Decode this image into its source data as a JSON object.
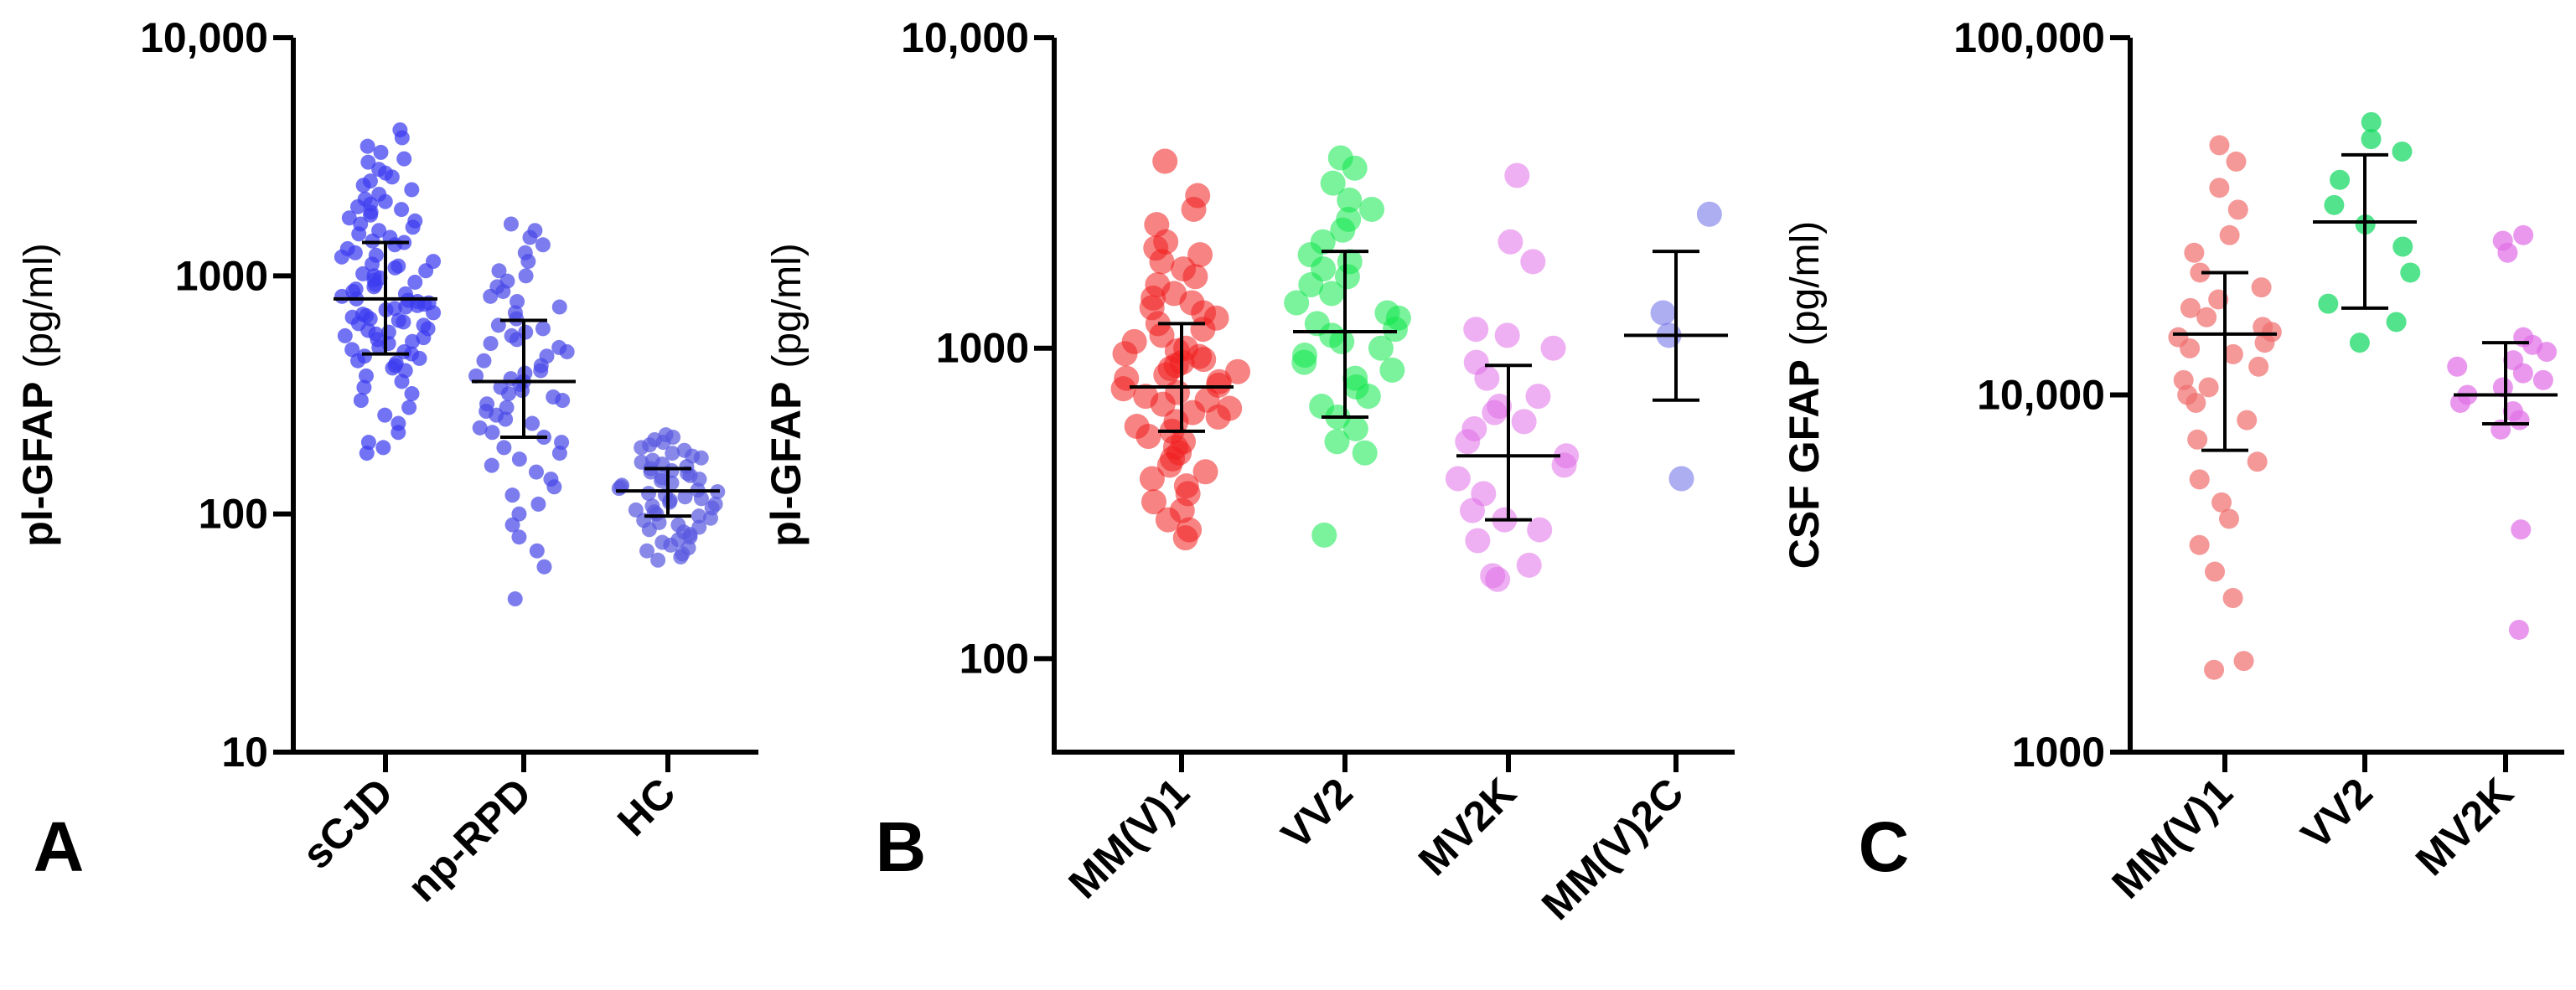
{
  "chart_data": [
    {
      "type": "scatter",
      "panel_label": "A",
      "ylabel_main": "pl-GFAP",
      "ylabel_unit": "(pg/ml)",
      "yscale": "log",
      "ylim": [
        10,
        10000
      ],
      "yticks": [
        10,
        100,
        1000,
        10000
      ],
      "ytick_labels": [
        "10",
        "100",
        "1000",
        "10,000"
      ],
      "categories": [
        "sCJD",
        "np-RPD",
        "HC"
      ],
      "series": [
        {
          "name": "sCJD",
          "color": "#3b3bf0",
          "median": 800,
          "q1": 470,
          "q3": 1380,
          "values": [
            4100,
            3800,
            3500,
            3300,
            3100,
            3000,
            2800,
            2700,
            2600,
            2500,
            2400,
            2300,
            2200,
            2100,
            2050,
            2000,
            1950,
            1900,
            1850,
            1800,
            1750,
            1700,
            1650,
            1600,
            1550,
            1500,
            1450,
            1400,
            1380,
            1350,
            1300,
            1250,
            1220,
            1200,
            1150,
            1120,
            1100,
            1080,
            1050,
            1020,
            1000,
            980,
            960,
            940,
            920,
            900,
            880,
            860,
            840,
            820,
            800,
            790,
            780,
            770,
            760,
            750,
            740,
            730,
            720,
            700,
            690,
            680,
            670,
            660,
            650,
            640,
            630,
            620,
            600,
            590,
            580,
            570,
            560,
            550,
            540,
            530,
            520,
            500,
            490,
            480,
            470,
            460,
            450,
            440,
            430,
            420,
            410,
            400,
            380,
            360,
            340,
            320,
            300,
            280,
            260,
            240,
            220,
            200,
            190,
            180
          ]
        },
        {
          "name": "np-RPD",
          "color": "#4a4ae8",
          "median": 360,
          "q1": 210,
          "q3": 650,
          "values": [
            1650,
            1550,
            1450,
            1350,
            1250,
            1150,
            1050,
            1000,
            950,
            900,
            860,
            820,
            780,
            740,
            700,
            660,
            620,
            600,
            580,
            560,
            540,
            520,
            500,
            480,
            460,
            440,
            420,
            400,
            390,
            380,
            370,
            360,
            350,
            340,
            330,
            320,
            310,
            300,
            290,
            280,
            270,
            260,
            250,
            240,
            230,
            220,
            210,
            200,
            190,
            180,
            170,
            160,
            150,
            140,
            130,
            120,
            110,
            100,
            90,
            80,
            70,
            60,
            44
          ]
        },
        {
          "name": "HC",
          "color": "#5a5ae0",
          "median": 125,
          "q1": 98,
          "q3": 155,
          "values": [
            215,
            210,
            205,
            200,
            195,
            190,
            185,
            180,
            175,
            172,
            168,
            165,
            162,
            158,
            155,
            152,
            150,
            148,
            145,
            142,
            140,
            138,
            135,
            132,
            130,
            128,
            126,
            124,
            122,
            120,
            118,
            116,
            114,
            112,
            110,
            108,
            106,
            104,
            102,
            100,
            98,
            96,
            94,
            92,
            90,
            88,
            86,
            84,
            82,
            80,
            78,
            76,
            74,
            72,
            70,
            68,
            66,
            64
          ]
        }
      ]
    },
    {
      "type": "scatter",
      "panel_label": "B",
      "ylabel_main": "pl-GFAP",
      "ylabel_unit": "(pg/ml)",
      "yscale": "log",
      "ylim": [
        50,
        10000
      ],
      "yticks": [
        100,
        1000,
        10000
      ],
      "ytick_labels": [
        "100",
        "1000",
        "10,000"
      ],
      "categories": [
        "MM(V)1",
        "VV2",
        "MV2K",
        "MM(V)2C"
      ],
      "series": [
        {
          "name": "MM(V)1",
          "color": "#f01e1e",
          "median": 750,
          "q1": 540,
          "q3": 1200,
          "values": [
            4000,
            3100,
            2800,
            2500,
            2200,
            2100,
            2000,
            1900,
            1800,
            1700,
            1600,
            1500,
            1450,
            1400,
            1350,
            1300,
            1250,
            1200,
            1150,
            1100,
            1050,
            1000,
            980,
            960,
            940,
            920,
            900,
            880,
            860,
            840,
            820,
            800,
            780,
            760,
            740,
            720,
            700,
            680,
            660,
            640,
            620,
            600,
            580,
            560,
            540,
            520,
            500,
            480,
            460,
            440,
            420,
            400,
            380,
            360,
            340,
            320,
            300,
            280,
            260,
            245
          ]
        },
        {
          "name": "VV2",
          "color": "#0ee84a",
          "median": 1130,
          "q1": 600,
          "q3": 2050,
          "values": [
            4100,
            3800,
            3400,
            3000,
            2800,
            2600,
            2400,
            2200,
            2000,
            1900,
            1800,
            1700,
            1600,
            1500,
            1400,
            1300,
            1250,
            1200,
            1150,
            1100,
            1050,
            1000,
            950,
            900,
            850,
            800,
            750,
            700,
            650,
            600,
            550,
            500,
            460,
            250
          ]
        },
        {
          "name": "MV2K",
          "color": "#e070e8",
          "median": 450,
          "q1": 280,
          "q3": 880,
          "values": [
            3600,
            2200,
            1900,
            1150,
            1100,
            1000,
            900,
            800,
            700,
            650,
            620,
            580,
            550,
            500,
            450,
            420,
            380,
            340,
            300,
            280,
            260,
            240,
            200,
            185,
            180
          ]
        },
        {
          "name": "MM(V)2C",
          "color": "#6a6ae8",
          "median": 1100,
          "q1": 680,
          "q3": 2050,
          "values": [
            2700,
            1300,
            1100,
            380
          ]
        }
      ]
    },
    {
      "type": "scatter",
      "panel_label": "C",
      "ylabel_main": "CSF GFAP",
      "ylabel_unit": "(pg/ml)",
      "yscale": "log",
      "ylim": [
        1000,
        100000
      ],
      "yticks": [
        1000,
        10000,
        100000
      ],
      "ytick_labels": [
        "1000",
        "10,000",
        "100,000"
      ],
      "categories": [
        "MM(V)1",
        "VV2",
        "MV2K"
      ],
      "series": [
        {
          "name": "MM(V)1",
          "color": "#f07070",
          "median": 14800,
          "q1": 7000,
          "q3": 22000,
          "values": [
            50000,
            45000,
            38000,
            33000,
            28000,
            25000,
            22000,
            20000,
            18500,
            17500,
            16500,
            15500,
            15000,
            14500,
            14000,
            13500,
            13000,
            12000,
            11000,
            10500,
            10000,
            9500,
            8500,
            7500,
            6500,
            5800,
            5000,
            4500,
            3800,
            3200,
            2700,
            1800,
            1700
          ]
        },
        {
          "name": "VV2",
          "color": "#10d860",
          "median": 30500,
          "q1": 17500,
          "q3": 47000,
          "values": [
            58000,
            52000,
            48000,
            40000,
            34000,
            30000,
            26000,
            22000,
            18000,
            16000,
            14000
          ]
        },
        {
          "name": "MV2K",
          "color": "#e070e8",
          "median": 10000,
          "q1": 8300,
          "q3": 14000,
          "values": [
            28000,
            27000,
            25000,
            14500,
            13800,
            13200,
            12500,
            12000,
            11500,
            11000,
            10500,
            10000,
            9500,
            9000,
            8500,
            8000,
            4200,
            2200
          ]
        }
      ]
    }
  ]
}
